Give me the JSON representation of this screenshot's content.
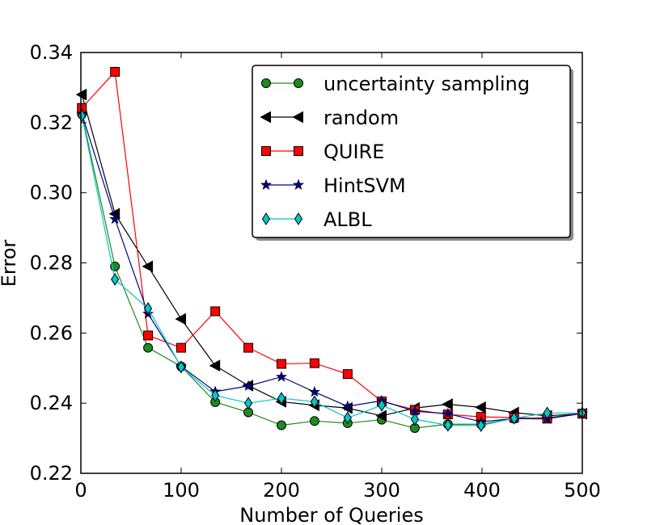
{
  "chart_data": {
    "type": "line",
    "title": "",
    "xlabel": "Number of Queries",
    "ylabel": "Error",
    "xlim": [
      0,
      500
    ],
    "ylim": [
      0.22,
      0.34
    ],
    "xticks": [
      "0",
      "100",
      "200",
      "300",
      "400",
      "500"
    ],
    "xtick_values": [
      0,
      100,
      200,
      300,
      400,
      500
    ],
    "yticks": [
      "0.22",
      "0.24",
      "0.26",
      "0.28",
      "0.30",
      "0.32",
      "0.34"
    ],
    "ytick_values": [
      0.22,
      0.24,
      0.26,
      0.28,
      0.3,
      0.32,
      0.34
    ],
    "legend_position": "top-right",
    "x": [
      1,
      34,
      67,
      100,
      134,
      167,
      200,
      233,
      266,
      300,
      333,
      366,
      399,
      432,
      465,
      500
    ],
    "series": [
      {
        "name": "uncertainty sampling",
        "color": "#1f8a1f",
        "marker": "circle",
        "values": [
          0.3225,
          0.279,
          0.2558,
          0.2505,
          0.2403,
          0.2374,
          0.2337,
          0.2349,
          0.2343,
          0.2353,
          0.2329,
          0.234,
          0.234,
          0.2356,
          0.2359,
          0.237
        ]
      },
      {
        "name": "random",
        "color": "#000000",
        "marker": "triangle-left",
        "values": [
          0.328,
          0.294,
          0.279,
          0.264,
          0.2507,
          0.245,
          0.2404,
          0.2394,
          0.2386,
          0.2364,
          0.2386,
          0.2397,
          0.2388,
          0.2373,
          0.2364,
          0.237
        ]
      },
      {
        "name": "QUIRE",
        "color": "#ff0000",
        "marker": "square",
        "values": [
          0.3242,
          0.3345,
          0.2593,
          0.2558,
          0.2662,
          0.2558,
          0.2512,
          0.2514,
          0.2483,
          0.2405,
          0.2381,
          0.2368,
          0.2361,
          0.2359,
          0.2356,
          0.237
        ]
      },
      {
        "name": "HintSVM",
        "color": "#00008b",
        "marker": "star",
        "values": [
          0.3225,
          0.2925,
          0.2655,
          0.2505,
          0.2433,
          0.2449,
          0.2475,
          0.2432,
          0.2391,
          0.2407,
          0.2377,
          0.237,
          0.2347,
          0.2356,
          0.2355,
          0.2372
        ]
      },
      {
        "name": "ALBL",
        "color": "#00c8c8",
        "marker": "diamond",
        "values": [
          0.322,
          0.2753,
          0.267,
          0.2503,
          0.2422,
          0.24,
          0.2414,
          0.2404,
          0.2358,
          0.2394,
          0.2354,
          0.2337,
          0.2336,
          0.2357,
          0.2372,
          0.2372
        ]
      }
    ]
  }
}
